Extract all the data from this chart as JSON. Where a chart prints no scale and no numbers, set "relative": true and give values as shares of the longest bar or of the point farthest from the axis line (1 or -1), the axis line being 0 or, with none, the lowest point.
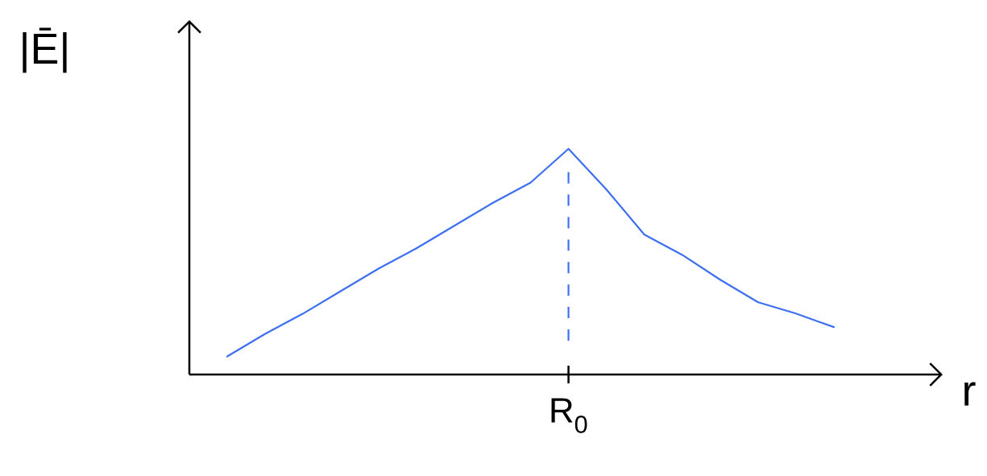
{
  "chart_data": {
    "type": "line",
    "relative": true,
    "xlabel": "r",
    "ylabel": "|Ē|",
    "categories": [
      null,
      null,
      null,
      null,
      null,
      null,
      null,
      null,
      null,
      null,
      null,
      null,
      null,
      null,
      null,
      null,
      null
    ],
    "values": [
      0.08,
      0.18,
      0.27,
      0.37,
      0.47,
      0.56,
      0.66,
      0.76,
      0.85,
      1.0,
      0.82,
      0.62,
      0.53,
      0.42,
      0.32,
      0.27,
      0.21
    ],
    "color": "#3d6ff0",
    "marker": "none",
    "annotations": [
      "R$_{0}$"
    ]
  }
}
